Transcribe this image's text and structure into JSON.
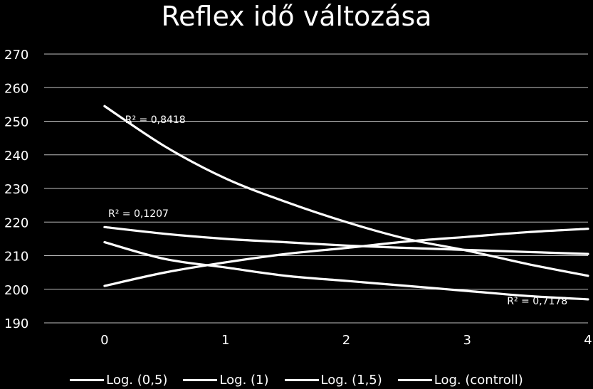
{
  "chart_data": {
    "type": "line",
    "title": "Reflex idő változása",
    "xlabel": "",
    "ylabel": "",
    "xlim": [
      -0.5,
      4
    ],
    "ylim": [
      190,
      270
    ],
    "x_ticks": [
      "0",
      "1",
      "2",
      "3",
      "4"
    ],
    "y_ticks": [
      "190",
      "200",
      "210",
      "220",
      "230",
      "240",
      "250",
      "260",
      "270"
    ],
    "grid": true,
    "legend_position": "bottom",
    "series": [
      {
        "name": "Log. (0,5)",
        "x": [
          0,
          0.5,
          1,
          1.5,
          2,
          2.5,
          3,
          3.5,
          4
        ],
        "y": [
          254.5,
          242.5,
          233.0,
          226.0,
          220.0,
          215.0,
          211.5,
          207.5,
          204.0
        ]
      },
      {
        "name": "Log. (1)",
        "x": [
          0,
          0.5,
          1,
          1.5,
          2,
          2.5,
          3,
          3.5,
          4
        ],
        "y": [
          218.5,
          216.5,
          215.0,
          214.0,
          213.0,
          212.3,
          211.7,
          211.1,
          210.5
        ]
      },
      {
        "name": "Log. (1,5)",
        "x": [
          0,
          0.5,
          1,
          1.5,
          2,
          2.5,
          3,
          3.5,
          4
        ],
        "y": [
          214.0,
          209.0,
          206.5,
          204.0,
          202.5,
          201.0,
          199.5,
          198.0,
          197.0
        ]
      },
      {
        "name": "Log. (controll)",
        "x": [
          0,
          0.5,
          1,
          1.5,
          2,
          2.5,
          3,
          3.5,
          4
        ],
        "y": [
          201.0,
          205.0,
          208.0,
          210.5,
          212.3,
          214.2,
          215.6,
          217.0,
          218.0
        ]
      }
    ],
    "annotations": [
      {
        "text": "R² = 0,8418",
        "x": 0.17,
        "y": 249.5
      },
      {
        "text": "R² = 0,1207",
        "x": 0.03,
        "y": 221.5
      },
      {
        "text": "R² = 0,7178",
        "x": 3.33,
        "y": 195.5
      }
    ]
  }
}
